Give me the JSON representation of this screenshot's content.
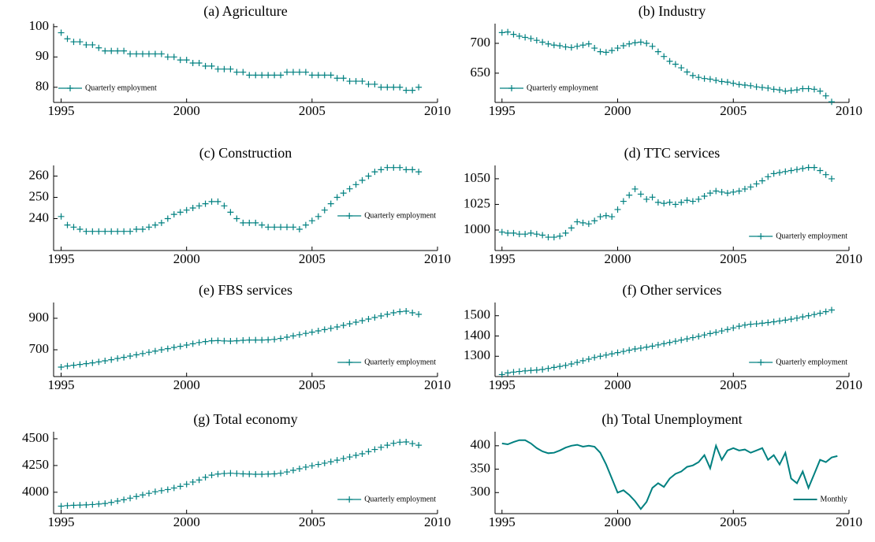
{
  "chart_data": [
    {
      "type": "scatter",
      "title": "(a) Agriculture",
      "x": [
        1995,
        1995.25,
        1995.5,
        1995.75,
        1996,
        1996.25,
        1996.5,
        1996.75,
        1997,
        1997.25,
        1997.5,
        1997.75,
        1998,
        1998.25,
        1998.5,
        1998.75,
        1999,
        1999.25,
        1999.5,
        1999.75,
        2000,
        2000.25,
        2000.5,
        2000.75,
        2001,
        2001.25,
        2001.5,
        2001.75,
        2002,
        2002.25,
        2002.5,
        2002.75,
        2003,
        2003.25,
        2003.5,
        2003.75,
        2004,
        2004.25,
        2004.5,
        2004.75,
        2005,
        2005.25,
        2005.5,
        2005.75,
        2006,
        2006.25,
        2006.5,
        2006.75,
        2007,
        2007.25,
        2007.5,
        2007.75,
        2008,
        2008.25,
        2008.5,
        2008.75,
        2009,
        2009.25
      ],
      "series": [
        {
          "name": "Quarterly employment",
          "color": "#008080",
          "values": [
            98,
            96,
            95,
            95,
            94,
            94,
            93,
            92,
            92,
            92,
            92,
            91,
            91,
            91,
            91,
            91,
            91,
            90,
            90,
            89,
            89,
            88,
            88,
            87,
            87,
            86,
            86,
            86,
            85,
            85,
            84,
            84,
            84,
            84,
            84,
            84,
            85,
            85,
            85,
            85,
            84,
            84,
            84,
            84,
            83,
            83,
            82,
            82,
            82,
            81,
            81,
            80,
            80,
            80,
            80,
            79,
            79,
            80
          ]
        }
      ],
      "xlim": [
        1994.7,
        2010
      ],
      "xticks": [
        1995,
        2000,
        2005,
        2010
      ],
      "ylim": [
        75,
        101
      ],
      "yticks": [
        80,
        90,
        100
      ],
      "legend": "lower left"
    },
    {
      "type": "scatter",
      "title": "(b) Industry",
      "x": [
        1995,
        1995.25,
        1995.5,
        1995.75,
        1996,
        1996.25,
        1996.5,
        1996.75,
        1997,
        1997.25,
        1997.5,
        1997.75,
        1998,
        1998.25,
        1998.5,
        1998.75,
        1999,
        1999.25,
        1999.5,
        1999.75,
        2000,
        2000.25,
        2000.5,
        2000.75,
        2001,
        2001.25,
        2001.5,
        2001.75,
        2002,
        2002.25,
        2002.5,
        2002.75,
        2003,
        2003.25,
        2003.5,
        2003.75,
        2004,
        2004.25,
        2004.5,
        2004.75,
        2005,
        2005.25,
        2005.5,
        2005.75,
        2006,
        2006.25,
        2006.5,
        2006.75,
        2007,
        2007.25,
        2007.5,
        2007.75,
        2008,
        2008.25,
        2008.5,
        2008.75,
        2009,
        2009.25
      ],
      "series": [
        {
          "name": "Quarterly employment",
          "color": "#008080",
          "values": [
            718,
            719,
            715,
            712,
            710,
            708,
            705,
            702,
            699,
            697,
            696,
            694,
            693,
            695,
            697,
            699,
            692,
            686,
            685,
            688,
            692,
            696,
            699,
            701,
            702,
            700,
            695,
            686,
            678,
            670,
            665,
            659,
            652,
            646,
            643,
            641,
            640,
            638,
            636,
            635,
            633,
            631,
            630,
            629,
            627,
            626,
            625,
            623,
            622,
            620,
            621,
            622,
            624,
            624,
            623,
            620,
            612,
            602
          ]
        }
      ],
      "xlim": [
        1994.7,
        2010
      ],
      "xticks": [
        1995,
        2000,
        2005,
        2010
      ],
      "ylim": [
        601,
        733
      ],
      "yticks": [
        650,
        700
      ],
      "legend": "lower left"
    },
    {
      "type": "scatter",
      "title": "(c) Construction",
      "x": [
        1995,
        1995.25,
        1995.5,
        1995.75,
        1996,
        1996.25,
        1996.5,
        1996.75,
        1997,
        1997.25,
        1997.5,
        1997.75,
        1998,
        1998.25,
        1998.5,
        1998.75,
        1999,
        1999.25,
        1999.5,
        1999.75,
        2000,
        2000.25,
        2000.5,
        2000.75,
        2001,
        2001.25,
        2001.5,
        2001.75,
        2002,
        2002.25,
        2002.5,
        2002.75,
        2003,
        2003.25,
        2003.5,
        2003.75,
        2004,
        2004.25,
        2004.5,
        2004.75,
        2005,
        2005.25,
        2005.5,
        2005.75,
        2006,
        2006.25,
        2006.5,
        2006.75,
        2007,
        2007.25,
        2007.5,
        2007.75,
        2008,
        2008.25,
        2008.5,
        2008.75,
        2009,
        2009.25
      ],
      "series": [
        {
          "name": "Quarterly employment",
          "color": "#008080",
          "values": [
            241,
            237,
            236,
            235,
            234,
            234,
            234,
            234,
            234,
            234,
            234,
            234,
            235,
            235,
            236,
            237,
            238,
            240,
            242,
            243,
            244,
            245,
            246,
            247,
            248,
            248,
            246,
            243,
            240,
            238,
            238,
            238,
            237,
            236,
            236,
            236,
            236,
            236,
            235,
            237,
            239,
            241,
            244,
            247,
            250,
            252,
            254,
            256,
            258,
            260,
            262,
            263,
            264,
            264,
            264,
            263,
            263,
            262
          ]
        }
      ],
      "xlim": [
        1994.7,
        2010
      ],
      "xticks": [
        1995,
        2000,
        2005,
        2010
      ],
      "ylim": [
        225,
        265
      ],
      "yticks": [
        240,
        250,
        260
      ],
      "legend": "center right"
    },
    {
      "type": "scatter",
      "title": "(d) TTC services",
      "x": [
        1995,
        1995.25,
        1995.5,
        1995.75,
        1996,
        1996.25,
        1996.5,
        1996.75,
        1997,
        1997.25,
        1997.5,
        1997.75,
        1998,
        1998.25,
        1998.5,
        1998.75,
        1999,
        1999.25,
        1999.5,
        1999.75,
        2000,
        2000.25,
        2000.5,
        2000.75,
        2001,
        2001.25,
        2001.5,
        2001.75,
        2002,
        2002.25,
        2002.5,
        2002.75,
        2003,
        2003.25,
        2003.5,
        2003.75,
        2004,
        2004.25,
        2004.5,
        2004.75,
        2005,
        2005.25,
        2005.5,
        2005.75,
        2006,
        2006.25,
        2006.5,
        2006.75,
        2007,
        2007.25,
        2007.5,
        2007.75,
        2008,
        2008.25,
        2008.5,
        2008.75,
        2009,
        2009.25
      ],
      "series": [
        {
          "name": "Quarterly employment",
          "color": "#008080",
          "values": [
            998,
            997,
            997,
            996,
            996,
            997,
            996,
            995,
            993,
            993,
            994,
            997,
            1002,
            1008,
            1007,
            1006,
            1009,
            1013,
            1014,
            1013,
            1020,
            1028,
            1034,
            1040,
            1035,
            1030,
            1032,
            1027,
            1026,
            1027,
            1025,
            1027,
            1029,
            1028,
            1030,
            1033,
            1036,
            1038,
            1037,
            1036,
            1037,
            1038,
            1040,
            1042,
            1045,
            1048,
            1052,
            1055,
            1056,
            1057,
            1058,
            1059,
            1060,
            1061,
            1061,
            1058,
            1054,
            1050
          ]
        }
      ],
      "xlim": [
        1994.7,
        2010
      ],
      "xticks": [
        1995,
        2000,
        2005,
        2010
      ],
      "ylim": [
        980,
        1063
      ],
      "yticks": [
        1000,
        1025,
        1050
      ],
      "legend": "lower right"
    },
    {
      "type": "scatter",
      "title": "(e) FBS services",
      "x": [
        1995,
        1995.25,
        1995.5,
        1995.75,
        1996,
        1996.25,
        1996.5,
        1996.75,
        1997,
        1997.25,
        1997.5,
        1997.75,
        1998,
        1998.25,
        1998.5,
        1998.75,
        1999,
        1999.25,
        1999.5,
        1999.75,
        2000,
        2000.25,
        2000.5,
        2000.75,
        2001,
        2001.25,
        2001.5,
        2001.75,
        2002,
        2002.25,
        2002.5,
        2002.75,
        2003,
        2003.25,
        2003.5,
        2003.75,
        2004,
        2004.25,
        2004.5,
        2004.75,
        2005,
        2005.25,
        2005.5,
        2005.75,
        2006,
        2006.25,
        2006.5,
        2006.75,
        2007,
        2007.25,
        2007.5,
        2007.75,
        2008,
        2008.25,
        2008.5,
        2008.75,
        2009,
        2009.25
      ],
      "series": [
        {
          "name": "Quarterly employment",
          "color": "#008080",
          "values": [
            590,
            597,
            602,
            607,
            612,
            617,
            623,
            630,
            637,
            645,
            652,
            660,
            668,
            676,
            684,
            692,
            700,
            707,
            715,
            722,
            730,
            738,
            746,
            752,
            757,
            758,
            756,
            755,
            757,
            760,
            762,
            762,
            762,
            763,
            766,
            772,
            780,
            788,
            796,
            804,
            812,
            820,
            828,
            836,
            845,
            855,
            865,
            875,
            885,
            895,
            905,
            915,
            925,
            935,
            942,
            945,
            935,
            925
          ]
        }
      ],
      "xlim": [
        1994.7,
        2010
      ],
      "xticks": [
        1995,
        2000,
        2005,
        2010
      ],
      "ylim": [
        530,
        1000
      ],
      "yticks": [
        700,
        900
      ],
      "legend": "lower right"
    },
    {
      "type": "scatter",
      "title": "(f) Other services",
      "x": [
        1995,
        1995.25,
        1995.5,
        1995.75,
        1996,
        1996.25,
        1996.5,
        1996.75,
        1997,
        1997.25,
        1997.5,
        1997.75,
        1998,
        1998.25,
        1998.5,
        1998.75,
        1999,
        1999.25,
        1999.5,
        1999.75,
        2000,
        2000.25,
        2000.5,
        2000.75,
        2001,
        2001.25,
        2001.5,
        2001.75,
        2002,
        2002.25,
        2002.5,
        2002.75,
        2003,
        2003.25,
        2003.5,
        2003.75,
        2004,
        2004.25,
        2004.5,
        2004.75,
        2005,
        2005.25,
        2005.5,
        2005.75,
        2006,
        2006.25,
        2006.5,
        2006.75,
        2007,
        2007.25,
        2007.5,
        2007.75,
        2008,
        2008.25,
        2008.5,
        2008.75,
        2009,
        2009.25
      ],
      "series": [
        {
          "name": "Quarterly employment",
          "color": "#008080",
          "values": [
            1210,
            1218,
            1222,
            1225,
            1228,
            1230,
            1232,
            1235,
            1240,
            1245,
            1250,
            1255,
            1262,
            1270,
            1278,
            1286,
            1294,
            1300,
            1306,
            1312,
            1318,
            1324,
            1330,
            1336,
            1340,
            1345,
            1350,
            1356,
            1362,
            1368,
            1374,
            1380,
            1386,
            1392,
            1398,
            1405,
            1412,
            1418,
            1425,
            1432,
            1440,
            1448,
            1454,
            1458,
            1460,
            1463,
            1466,
            1470,
            1474,
            1478,
            1483,
            1488,
            1494,
            1500,
            1506,
            1512,
            1520,
            1528
          ]
        }
      ],
      "xlim": [
        1994.7,
        2010
      ],
      "xticks": [
        1995,
        2000,
        2005,
        2010
      ],
      "ylim": [
        1200,
        1565
      ],
      "yticks": [
        1300,
        1400,
        1500
      ],
      "legend": "lower right"
    },
    {
      "type": "scatter",
      "title": "(g) Total economy",
      "x": [
        1995,
        1995.25,
        1995.5,
        1995.75,
        1996,
        1996.25,
        1996.5,
        1996.75,
        1997,
        1997.25,
        1997.5,
        1997.75,
        1998,
        1998.25,
        1998.5,
        1998.75,
        1999,
        1999.25,
        1999.5,
        1999.75,
        2000,
        2000.25,
        2000.5,
        2000.75,
        2001,
        2001.25,
        2001.5,
        2001.75,
        2002,
        2002.25,
        2002.5,
        2002.75,
        2003,
        2003.25,
        2003.5,
        2003.75,
        2004,
        2004.25,
        2004.5,
        2004.75,
        2005,
        2005.25,
        2005.5,
        2005.75,
        2006,
        2006.25,
        2006.5,
        2006.75,
        2007,
        2007.25,
        2007.5,
        2007.75,
        2008,
        2008.25,
        2008.5,
        2008.75,
        2009,
        2009.25
      ],
      "series": [
        {
          "name": "Quarterly employment",
          "color": "#008080",
          "values": [
            3870,
            3875,
            3878,
            3880,
            3882,
            3885,
            3890,
            3895,
            3905,
            3918,
            3930,
            3945,
            3960,
            3975,
            3990,
            4005,
            4015,
            4025,
            4040,
            4055,
            4075,
            4095,
            4115,
            4140,
            4160,
            4170,
            4175,
            4178,
            4175,
            4172,
            4170,
            4168,
            4168,
            4170,
            4172,
            4178,
            4190,
            4205,
            4220,
            4235,
            4248,
            4260,
            4272,
            4285,
            4300,
            4315,
            4330,
            4345,
            4360,
            4380,
            4400,
            4420,
            4440,
            4458,
            4468,
            4470,
            4455,
            4440
          ]
        }
      ],
      "xlim": [
        1994.7,
        2010
      ],
      "xticks": [
        1995,
        2000,
        2005,
        2010
      ],
      "ylim": [
        3800,
        4566
      ],
      "yticks": [
        4000,
        4250,
        4500
      ],
      "legend": "lower right"
    },
    {
      "type": "line",
      "title": "(h) Total Unemployment",
      "x": [
        1995,
        1995.25,
        1995.5,
        1995.75,
        1996,
        1996.25,
        1996.5,
        1996.75,
        1997,
        1997.25,
        1997.5,
        1997.75,
        1998,
        1998.25,
        1998.5,
        1998.75,
        1999,
        1999.25,
        1999.5,
        1999.75,
        2000,
        2000.25,
        2000.5,
        2000.75,
        2001,
        2001.25,
        2001.5,
        2001.75,
        2002,
        2002.25,
        2002.5,
        2002.75,
        2003,
        2003.25,
        2003.5,
        2003.75,
        2004,
        2004.25,
        2004.5,
        2004.75,
        2005,
        2005.25,
        2005.5,
        2005.75,
        2006,
        2006.25,
        2006.5,
        2006.75,
        2007,
        2007.25,
        2007.5,
        2007.75,
        2008,
        2008.25,
        2008.5,
        2008.75,
        2009,
        2009.25,
        2009.5
      ],
      "series": [
        {
          "name": "Monthly",
          "color": "#008080",
          "values": [
            405,
            403,
            408,
            412,
            412,
            405,
            395,
            388,
            384,
            385,
            390,
            396,
            400,
            402,
            398,
            400,
            398,
            385,
            360,
            330,
            300,
            305,
            295,
            282,
            265,
            280,
            310,
            320,
            312,
            330,
            340,
            345,
            355,
            358,
            365,
            380,
            352,
            400,
            370,
            390,
            395,
            390,
            392,
            385,
            390,
            395,
            370,
            380,
            360,
            385,
            330,
            320,
            345,
            310,
            340,
            370,
            365,
            375,
            378
          ]
        }
      ],
      "xlim": [
        1994.7,
        2010
      ],
      "xticks": [
        1995,
        2000,
        2005,
        2010
      ],
      "ylim": [
        255,
        430
      ],
      "yticks": [
        300,
        350,
        400
      ],
      "legend": "lower right"
    }
  ]
}
